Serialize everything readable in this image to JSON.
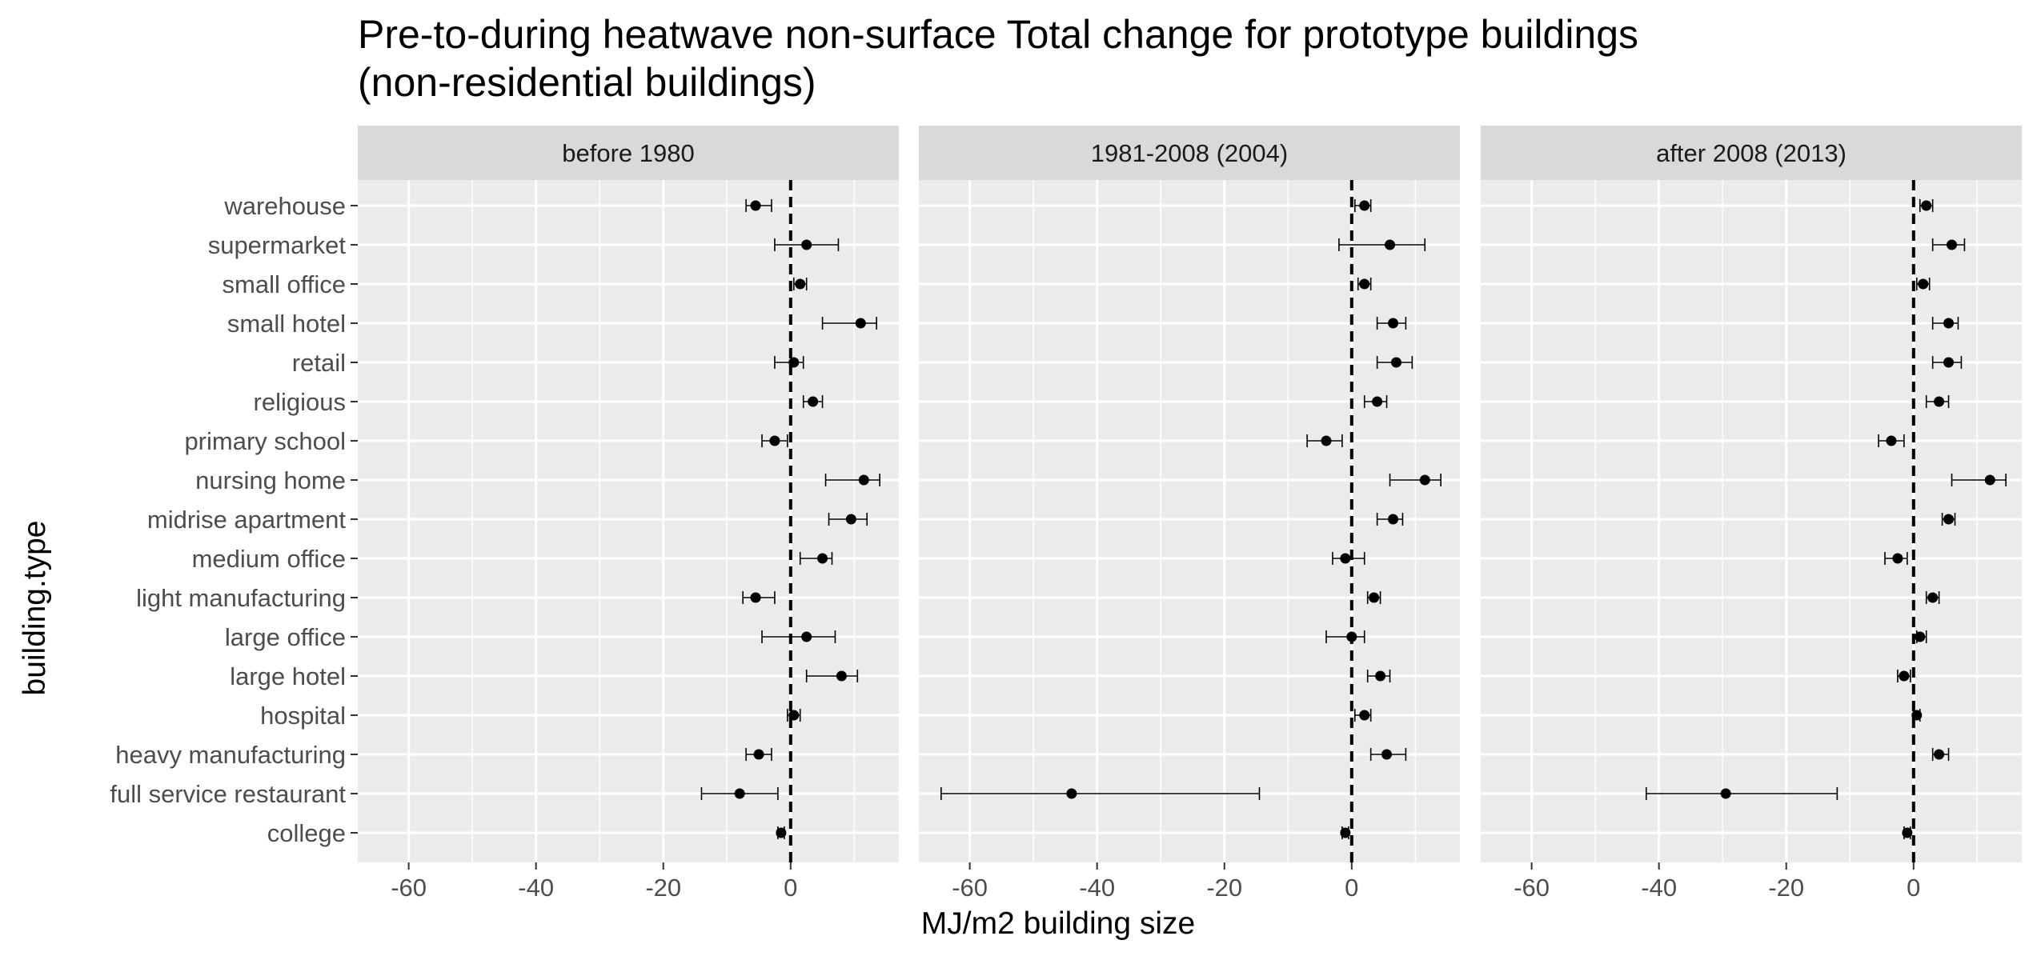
{
  "chart_data": {
    "type": "scatter",
    "title": "Pre-to-during heatwave non-surface Total change for prototype buildings",
    "subtitle": "(non-residential buildings)",
    "xlabel": "MJ/m2 building size",
    "ylabel": "building.type",
    "xlim": [
      -68,
      17
    ],
    "xticks": [
      -60,
      -40,
      -20,
      0
    ],
    "reference_line_x": 0,
    "grid": true,
    "legend": "none",
    "categories": [
      "warehouse",
      "supermarket",
      "small office",
      "small hotel",
      "retail",
      "religious",
      "primary school",
      "nursing home",
      "midrise apartment",
      "medium office",
      "light manufacturing",
      "large office",
      "large hotel",
      "hospital",
      "heavy manufacturing",
      "full service restaurant",
      "college"
    ],
    "panels": [
      {
        "name": "before 1980",
        "points": [
          {
            "y": -5.5,
            "lo": -7.0,
            "hi": -3.0
          },
          {
            "y": 2.5,
            "lo": -2.5,
            "hi": 7.5
          },
          {
            "y": 1.5,
            "lo": 0.5,
            "hi": 2.5
          },
          {
            "y": 11.0,
            "lo": 5.0,
            "hi": 13.5
          },
          {
            "y": 0.5,
            "lo": -2.5,
            "hi": 2.0
          },
          {
            "y": 3.5,
            "lo": 2.0,
            "hi": 5.0
          },
          {
            "y": -2.5,
            "lo": -4.5,
            "hi": -0.5
          },
          {
            "y": 11.5,
            "lo": 5.5,
            "hi": 14.0
          },
          {
            "y": 9.5,
            "lo": 6.0,
            "hi": 12.0
          },
          {
            "y": 5.0,
            "lo": 1.5,
            "hi": 6.5
          },
          {
            "y": -5.5,
            "lo": -7.5,
            "hi": -2.5
          },
          {
            "y": 2.5,
            "lo": -4.5,
            "hi": 7.0
          },
          {
            "y": 8.0,
            "lo": 2.5,
            "hi": 10.5
          },
          {
            "y": 0.5,
            "lo": -0.5,
            "hi": 1.5
          },
          {
            "y": -5.0,
            "lo": -7.0,
            "hi": -3.0
          },
          {
            "y": -8.0,
            "lo": -14.0,
            "hi": -2.0
          },
          {
            "y": -1.5,
            "lo": -2.0,
            "hi": -1.0
          }
        ]
      },
      {
        "name": "1981-2008 (2004)",
        "points": [
          {
            "y": 2.0,
            "lo": 0.5,
            "hi": 3.0
          },
          {
            "y": 6.0,
            "lo": -2.0,
            "hi": 11.5
          },
          {
            "y": 2.0,
            "lo": 1.0,
            "hi": 3.0
          },
          {
            "y": 6.5,
            "lo": 4.0,
            "hi": 8.5
          },
          {
            "y": 7.0,
            "lo": 4.0,
            "hi": 9.5
          },
          {
            "y": 4.0,
            "lo": 2.0,
            "hi": 5.5
          },
          {
            "y": -4.0,
            "lo": -7.0,
            "hi": -1.5
          },
          {
            "y": 11.5,
            "lo": 6.0,
            "hi": 14.0
          },
          {
            "y": 6.5,
            "lo": 4.0,
            "hi": 8.0
          },
          {
            "y": -1.0,
            "lo": -3.0,
            "hi": 2.0
          },
          {
            "y": 3.5,
            "lo": 2.5,
            "hi": 4.5
          },
          {
            "y": 0.0,
            "lo": -4.0,
            "hi": 2.0
          },
          {
            "y": 4.5,
            "lo": 2.5,
            "hi": 6.0
          },
          {
            "y": 2.0,
            "lo": 0.5,
            "hi": 3.0
          },
          {
            "y": 5.5,
            "lo": 3.0,
            "hi": 8.5
          },
          {
            "y": -44.0,
            "lo": -64.5,
            "hi": -14.5
          },
          {
            "y": -1.0,
            "lo": -1.5,
            "hi": -0.5
          }
        ]
      },
      {
        "name": "after 2008 (2013)",
        "points": [
          {
            "y": 2.0,
            "lo": 1.0,
            "hi": 3.0
          },
          {
            "y": 6.0,
            "lo": 3.0,
            "hi": 8.0
          },
          {
            "y": 1.5,
            "lo": 0.5,
            "hi": 2.5
          },
          {
            "y": 5.5,
            "lo": 3.0,
            "hi": 7.0
          },
          {
            "y": 5.5,
            "lo": 3.0,
            "hi": 7.5
          },
          {
            "y": 4.0,
            "lo": 2.0,
            "hi": 5.5
          },
          {
            "y": -3.5,
            "lo": -5.5,
            "hi": -1.5
          },
          {
            "y": 12.0,
            "lo": 6.0,
            "hi": 14.5
          },
          {
            "y": 5.5,
            "lo": 4.5,
            "hi": 6.5
          },
          {
            "y": -2.5,
            "lo": -4.5,
            "hi": -1.0
          },
          {
            "y": 3.0,
            "lo": 2.0,
            "hi": 4.0
          },
          {
            "y": 1.0,
            "lo": 0.5,
            "hi": 2.0
          },
          {
            "y": -1.5,
            "lo": -2.5,
            "hi": -0.5
          },
          {
            "y": 0.5,
            "lo": 0.0,
            "hi": 1.0
          },
          {
            "y": 4.0,
            "lo": 3.0,
            "hi": 5.5
          },
          {
            "y": -29.5,
            "lo": -42.0,
            "hi": -12.0
          },
          {
            "y": -1.0,
            "lo": -1.5,
            "hi": -0.5
          }
        ]
      }
    ]
  }
}
